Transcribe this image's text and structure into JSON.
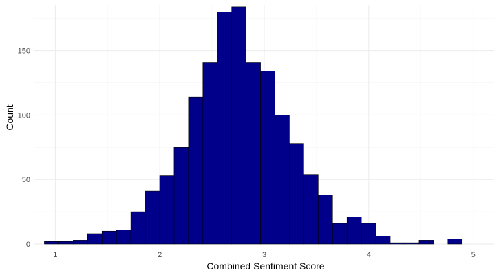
{
  "chart_data": {
    "type": "bar",
    "subtype": "histogram",
    "title": "",
    "xlabel": "Combined Sentiment Score",
    "ylabel": "Count",
    "xlim": [
      0.8,
      5.2
    ],
    "ylim": [
      0,
      185
    ],
    "x_ticks": [
      1,
      2,
      3,
      4,
      5
    ],
    "y_ticks": [
      0,
      50,
      100,
      150
    ],
    "grid": true,
    "legend": "none",
    "bin_edges_start": 0.8953,
    "bin_width": 0.13793,
    "values": [
      2,
      2,
      3,
      8,
      10,
      11,
      25,
      41,
      53,
      75,
      114,
      141,
      180,
      184,
      141,
      134,
      100,
      78,
      54,
      38,
      16,
      21,
      16,
      6,
      1,
      1,
      3,
      0,
      4
    ],
    "colors": {
      "fill": "#00008b",
      "outline": "#000000",
      "grid_major": "#ebebeb",
      "grid_minor": "#f5f5f5"
    }
  }
}
